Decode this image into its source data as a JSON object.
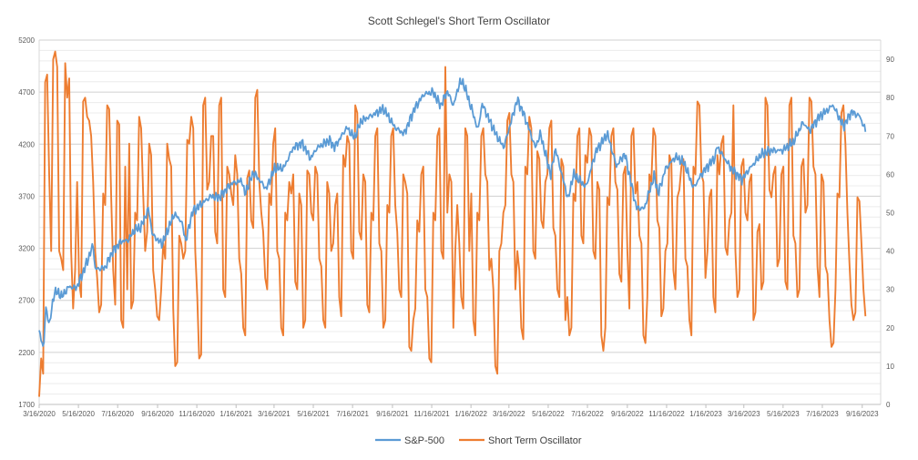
{
  "chart_data": {
    "type": "line",
    "title": "Scott Schlegel's Short Term Oscillator",
    "x_ticks": [
      "3/16/2020",
      "5/16/2020",
      "7/16/2020",
      "9/16/2020",
      "11/16/2020",
      "1/16/2021",
      "3/16/2021",
      "5/16/2021",
      "7/16/2021",
      "9/16/2021",
      "11/16/2021",
      "1/16/2022",
      "3/16/2022",
      "5/16/2022",
      "7/16/2022",
      "9/16/2022",
      "11/16/2022",
      "1/16/2023",
      "3/16/2023",
      "5/16/2023",
      "7/16/2023",
      "9/16/2023"
    ],
    "y_left": {
      "min": 1700,
      "max": 5200,
      "step": 500,
      "ticks": [
        "1700",
        "2200",
        "2700",
        "3200",
        "3700",
        "4200",
        "4700",
        "5200"
      ]
    },
    "y_right": {
      "min": 0,
      "max": 95,
      "step": 10,
      "ticks": [
        "0",
        "10",
        "20",
        "30",
        "40",
        "50",
        "60",
        "70",
        "80",
        "90"
      ]
    },
    "grid": true,
    "legend_position": "bottom",
    "series": [
      {
        "name": "S&P-500",
        "axis": "left",
        "color": "#5B9BD5",
        "start": "3/16/2020",
        "points": [
          [
            "3/16/2020",
            2390
          ],
          [
            "3/23/2020",
            2240
          ],
          [
            "3/26/2020",
            2630
          ],
          [
            "4/1/2020",
            2470
          ],
          [
            "4/9/2020",
            2790
          ],
          [
            "4/21/2020",
            2740
          ],
          [
            "5/1/2020",
            2830
          ],
          [
            "5/13/2020",
            2820
          ],
          [
            "5/22/2020",
            2950
          ],
          [
            "6/8/2020",
            3230
          ],
          [
            "6/11/2020",
            3000
          ],
          [
            "6/26/2020",
            3010
          ],
          [
            "7/8/2020",
            3170
          ],
          [
            "7/22/2020",
            3270
          ],
          [
            "7/31/2020",
            3270
          ],
          [
            "8/12/2020",
            3380
          ],
          [
            "8/21/2020",
            3400
          ],
          [
            "9/2/2020",
            3580
          ],
          [
            "9/8/2020",
            3330
          ],
          [
            "9/23/2020",
            3240
          ],
          [
            "10/12/2020",
            3530
          ],
          [
            "10/23/2020",
            3460
          ],
          [
            "10/30/2020",
            3270
          ],
          [
            "11/9/2020",
            3550
          ],
          [
            "11/24/2020",
            3630
          ],
          [
            "12/8/2020",
            3700
          ],
          [
            "12/21/2020",
            3690
          ],
          [
            "1/8/2021",
            3820
          ],
          [
            "1/26/2021",
            3850
          ],
          [
            "1/29/2021",
            3710
          ],
          [
            "2/12/2021",
            3930
          ],
          [
            "3/4/2021",
            3770
          ],
          [
            "3/17/2021",
            3970
          ],
          [
            "3/31/2021",
            3970
          ],
          [
            "4/15/2021",
            4170
          ],
          [
            "4/29/2021",
            4210
          ],
          [
            "5/12/2021",
            4060
          ],
          [
            "5/21/2021",
            4160
          ],
          [
            "6/10/2021",
            4240
          ],
          [
            "6/18/2021",
            4170
          ],
          [
            "7/7/2021",
            4360
          ],
          [
            "7/19/2021",
            4260
          ],
          [
            "7/29/2021",
            4420
          ],
          [
            "8/16/2021",
            4480
          ],
          [
            "8/30/2021",
            4530
          ],
          [
            "9/2/2021",
            4540
          ],
          [
            "9/20/2021",
            4360
          ],
          [
            "10/4/2021",
            4300
          ],
          [
            "10/21/2021",
            4550
          ],
          [
            "11/4/2021",
            4680
          ],
          [
            "11/18/2021",
            4700
          ],
          [
            "11/30/2021",
            4570
          ],
          [
            "12/10/2021",
            4710
          ],
          [
            "12/20/2021",
            4570
          ],
          [
            "12/29/2021",
            4790
          ],
          [
            "1/4/2022",
            4790
          ],
          [
            "1/20/2022",
            4480
          ],
          [
            "1/27/2022",
            4330
          ],
          [
            "2/2/2022",
            4590
          ],
          [
            "2/24/2022",
            4290
          ],
          [
            "3/8/2022",
            4170
          ],
          [
            "3/29/2022",
            4630
          ],
          [
            "4/8/2022",
            4490
          ],
          [
            "4/26/2022",
            4170
          ],
          [
            "5/4/2022",
            4300
          ],
          [
            "5/20/2022",
            3900
          ],
          [
            "5/27/2022",
            4160
          ],
          [
            "6/16/2022",
            3670
          ],
          [
            "6/24/2022",
            3910
          ],
          [
            "7/14/2022",
            3790
          ],
          [
            "7/29/2022",
            4130
          ],
          [
            "8/16/2022",
            4300
          ],
          [
            "8/30/2022",
            3990
          ],
          [
            "9/12/2022",
            4110
          ],
          [
            "9/30/2022",
            3590
          ],
          [
            "10/12/2022",
            3580
          ],
          [
            "10/28/2022",
            3900
          ],
          [
            "11/3/2022",
            3720
          ],
          [
            "11/14/2022",
            3960
          ],
          [
            "11/30/2022",
            4080
          ],
          [
            "12/13/2022",
            4020
          ],
          [
            "12/28/2022",
            3780
          ],
          [
            "1/10/2023",
            3920
          ],
          [
            "1/31/2023",
            4080
          ],
          [
            "2/2/2023",
            4180
          ],
          [
            "2/24/2023",
            3970
          ],
          [
            "3/13/2023",
            3860
          ],
          [
            "3/23/2023",
            3950
          ],
          [
            "4/12/2023",
            4100
          ],
          [
            "4/27/2023",
            4140
          ],
          [
            "5/15/2023",
            4140
          ],
          [
            "6/1/2023",
            4220
          ],
          [
            "6/16/2023",
            4410
          ],
          [
            "6/26/2023",
            4330
          ],
          [
            "7/12/2023",
            4470
          ],
          [
            "7/27/2023",
            4540
          ],
          [
            "8/1/2023",
            4580
          ],
          [
            "8/18/2023",
            4370
          ],
          [
            "8/30/2023",
            4510
          ],
          [
            "9/12/2023",
            4470
          ],
          [
            "9/21/2023",
            4330
          ]
        ]
      },
      {
        "name": "Short Term Oscillator",
        "axis": "right",
        "color": "#ED7D31",
        "start": "3/16/2020",
        "values": [
          2,
          12,
          8,
          84,
          86,
          60,
          40,
          90,
          92,
          88,
          40,
          38,
          35,
          89,
          80,
          85,
          40,
          25,
          35,
          58,
          32,
          28,
          79,
          80,
          75,
          74,
          70,
          58,
          40,
          33,
          24,
          26,
          55,
          52,
          78,
          77,
          54,
          35,
          26,
          74,
          73,
          22,
          20,
          62,
          30,
          68,
          25,
          27,
          50,
          48,
          75,
          72,
          55,
          40,
          45,
          68,
          65,
          35,
          30,
          23,
          22,
          30,
          42,
          38,
          68,
          64,
          62,
          25,
          10,
          11,
          44,
          42,
          38,
          40,
          69,
          68,
          75,
          72,
          40,
          28,
          12,
          13,
          78,
          80,
          56,
          58,
          70,
          70,
          45,
          42,
          78,
          80,
          30,
          28,
          62,
          60,
          55,
          52,
          65,
          60,
          38,
          34,
          20,
          18,
          59,
          61,
          48,
          46,
          80,
          82,
          58,
          50,
          45,
          33,
          30,
          55,
          52,
          68,
          72,
          40,
          38,
          20,
          18,
          50,
          48,
          58,
          55,
          60,
          32,
          30,
          55,
          52,
          20,
          22,
          61,
          60,
          50,
          48,
          62,
          60,
          38,
          36,
          22,
          20,
          58,
          55,
          40,
          42,
          52,
          55,
          28,
          23,
          65,
          62,
          70,
          68,
          40,
          38,
          78,
          76,
          45,
          43,
          60,
          58,
          26,
          24,
          50,
          48,
          70,
          72,
          42,
          40,
          20,
          22,
          52,
          50,
          70,
          72,
          52,
          45,
          30,
          28,
          60,
          58,
          55,
          15,
          14,
          22,
          25,
          48,
          45,
          60,
          62,
          30,
          28,
          12,
          11,
          50,
          48,
          70,
          72,
          40,
          38,
          88,
          50,
          60,
          58,
          20,
          40,
          52,
          42,
          28,
          25,
          72,
          70,
          40,
          55,
          22,
          18,
          50,
          48,
          70,
          72,
          60,
          58,
          35,
          38,
          30,
          10,
          8,
          40,
          42,
          50,
          52,
          74,
          76,
          60,
          58,
          30,
          40,
          35,
          20,
          17,
          62,
          60,
          75,
          72,
          40,
          38,
          66,
          64,
          48,
          46,
          58,
          60,
          72,
          74,
          46,
          44,
          30,
          28,
          64,
          62,
          22,
          28,
          18,
          20,
          55,
          53,
          70,
          72,
          44,
          42,
          65,
          63,
          72,
          70,
          40,
          38,
          58,
          56,
          18,
          14,
          20,
          54,
          52,
          70,
          72,
          58,
          56,
          34,
          32,
          60,
          62,
          40,
          25,
          70,
          72,
          55,
          58,
          44,
          42,
          18,
          16,
          28,
          60,
          58,
          72,
          70,
          48,
          46,
          23,
          25,
          40,
          42,
          65,
          63,
          35,
          30,
          54,
          56,
          62,
          64,
          38,
          36,
          22,
          18,
          62,
          60,
          79,
          78,
          60,
          58,
          33,
          40,
          54,
          56,
          28,
          24,
          65,
          60,
          68,
          70,
          41,
          39,
          48,
          50,
          78,
          40,
          28,
          30,
          62,
          64,
          50,
          48,
          58,
          60,
          22,
          24,
          45,
          47,
          30,
          32,
          80,
          78,
          56,
          54,
          60,
          62,
          36,
          38,
          60,
          62,
          32,
          30,
          78,
          80,
          44,
          42,
          28,
          30,
          62,
          64,
          50,
          52,
          80,
          79,
          62,
          60,
          36,
          28,
          60,
          58,
          36,
          34,
          22,
          15,
          16,
          30,
          55,
          54,
          76,
          78,
          68,
          50,
          37,
          26,
          22,
          24,
          54,
          53,
          42,
          30,
          23
        ]
      }
    ]
  }
}
